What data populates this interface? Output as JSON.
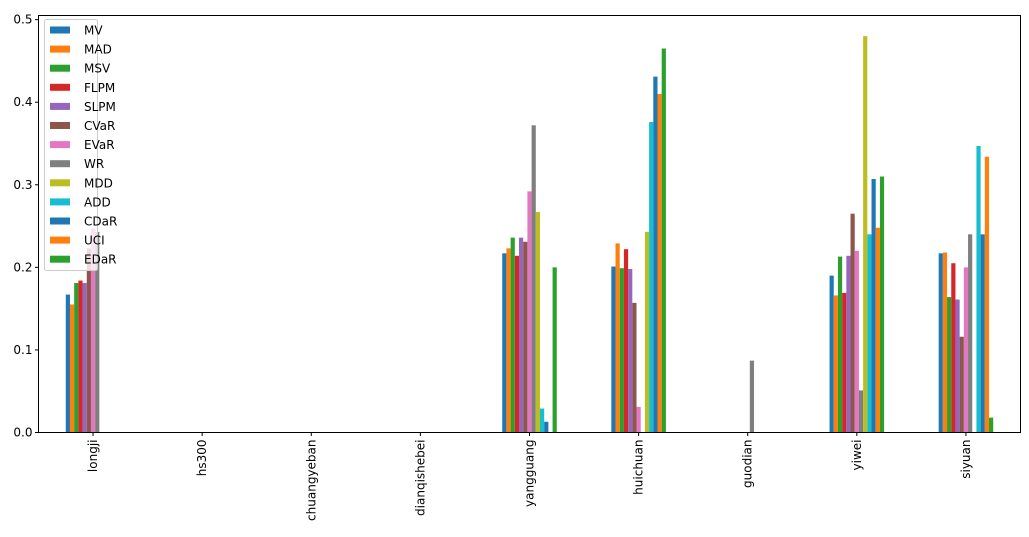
{
  "chart_data": {
    "type": "bar",
    "title": "",
    "xlabel": "",
    "ylabel": "",
    "ylim": [
      0,
      0.505
    ],
    "yticks": [
      "0.0",
      "0.1",
      "0.2",
      "0.3",
      "0.4",
      "0.5"
    ],
    "grid": false,
    "legend_position": "upper-left",
    "categories": [
      "longji",
      "hs300",
      "chuangyeban",
      "dianqishebei",
      "yangguang",
      "huichuan",
      "guodian",
      "yiwei",
      "siyuan"
    ],
    "series": [
      {
        "name": "MV",
        "color": "#1f77b4",
        "values": [
          0.167,
          0,
          0,
          0,
          0.217,
          0.201,
          0,
          0.19,
          0.217
        ]
      },
      {
        "name": "MAD",
        "color": "#ff7f0e",
        "values": [
          0.155,
          0,
          0,
          0,
          0.223,
          0.229,
          0,
          0.166,
          0.218
        ]
      },
      {
        "name": "MSV",
        "color": "#2ca02c",
        "values": [
          0.181,
          0,
          0,
          0,
          0.236,
          0.199,
          0,
          0.213,
          0.164
        ]
      },
      {
        "name": "FLPM",
        "color": "#d62728",
        "values": [
          0.184,
          0,
          0,
          0,
          0.214,
          0.222,
          0,
          0.169,
          0.205
        ]
      },
      {
        "name": "SLPM",
        "color": "#9467bd",
        "values": [
          0.181,
          0,
          0,
          0,
          0.236,
          0.198,
          0,
          0.214,
          0.161
        ]
      },
      {
        "name": "CVaR",
        "color": "#8c564b",
        "values": [
          0.223,
          0,
          0,
          0,
          0.231,
          0.157,
          0,
          0.265,
          0.116
        ]
      },
      {
        "name": "EVaR",
        "color": "#e377c2",
        "values": [
          0.247,
          0,
          0,
          0,
          0.292,
          0.031,
          0,
          0.22,
          0.2
        ]
      },
      {
        "name": "WR",
        "color": "#7f7f7f",
        "values": [
          0.243,
          0,
          0,
          0,
          0.372,
          0,
          0.087,
          0.051,
          0.24
        ]
      },
      {
        "name": "MDD",
        "color": "#bcbd22",
        "values": [
          0,
          0,
          0,
          0,
          0.267,
          0.243,
          0,
          0.48,
          0
        ]
      },
      {
        "name": "ADD",
        "color": "#17becf",
        "values": [
          0,
          0,
          0,
          0,
          0.029,
          0.376,
          0,
          0.24,
          0.347
        ]
      },
      {
        "name": "CDaR",
        "color": "#1f77b4",
        "values": [
          0,
          0,
          0,
          0,
          0.013,
          0.431,
          0,
          0.307,
          0.24
        ]
      },
      {
        "name": "UCI",
        "color": "#ff7f0e",
        "values": [
          0,
          0,
          0,
          0,
          0,
          0.41,
          0,
          0.248,
          0.334
        ]
      },
      {
        "name": "EDaR",
        "color": "#2ca02c",
        "values": [
          0,
          0,
          0,
          0,
          0.2,
          0.465,
          0,
          0.31,
          0.018
        ]
      }
    ]
  }
}
